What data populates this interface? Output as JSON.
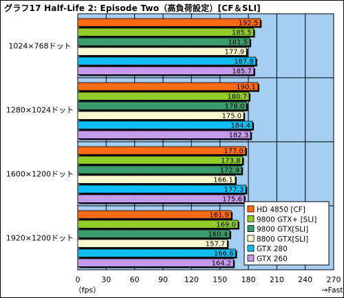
{
  "title": "グラフ17  Half-Life 2: Episode Two（高負荷設定）[CF＆SLI]",
  "colors": {
    "plot_bg": "#a6cdf2",
    "watermark": "#c2dcf5"
  },
  "chart_data": {
    "type": "bar",
    "orientation": "horizontal",
    "title": "グラフ17  Half-Life 2: Episode Two（高負荷設定）[CF＆SLI]",
    "categories": [
      "1024×768ドット",
      "1280×1024ドット",
      "1600×1200ドット",
      "1920×1200ドット"
    ],
    "xlim": [
      0,
      270
    ],
    "xticks": [
      0,
      30,
      60,
      90,
      120,
      150,
      180,
      210,
      240,
      270
    ],
    "xlabel_unit": "（fps）",
    "xlabel_direction": "→Fast",
    "grid": true,
    "legend_position": "bottom-right",
    "series": [
      {
        "name": "HD 4850 [CF]",
        "color": "#ff6a12",
        "values": [
          192.5,
          190.1,
          177.0,
          161.9
        ]
      },
      {
        "name": "9800 GTX+ [SLI]",
        "color": "#92cc2a",
        "values": [
          185.5,
          180.7,
          173.8,
          169.0
        ]
      },
      {
        "name": "9800 GTX[SLI]",
        "color": "#3c9b6c",
        "values": [
          181.5,
          178.0,
          172.9,
          160.4
        ]
      },
      {
        "name": "8800 GTX[SLI]",
        "color": "#f9f9cf",
        "values": [
          177.9,
          175.0,
          166.1,
          157.7
        ]
      },
      {
        "name": "GTX 280",
        "color": "#10bdf4",
        "values": [
          187.8,
          184.4,
          177.3,
          166.6
        ]
      },
      {
        "name": "GTX 260",
        "color": "#c39aec",
        "values": [
          185.7,
          182.3,
          175.6,
          164.2
        ]
      }
    ]
  }
}
